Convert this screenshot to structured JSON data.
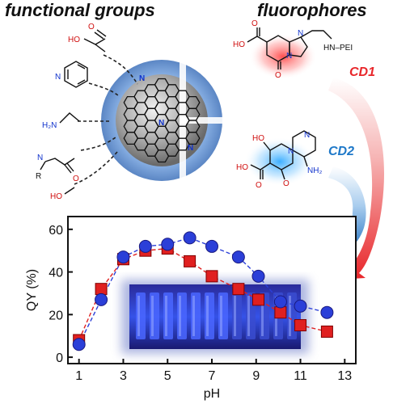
{
  "headings": {
    "functional_groups": "functional groups",
    "fluorophores": "fluorophores"
  },
  "labels": {
    "cd1": "CD1",
    "cd2": "CD2",
    "cd1_color": "#e8262a",
    "cd2_color": "#1e78c8"
  },
  "functional_group_labels": {
    "carboxyl_ho": "HO",
    "carboxyl_o": "O",
    "pyridine_n": "N",
    "amine": "H₂N",
    "amide_n": "N",
    "amide_r": "R",
    "amide_o": "O",
    "hydroxyl": "HO"
  },
  "fluorophore1_labels": {
    "o_top": "O",
    "ho": "HO",
    "n_ring": "N",
    "n_fused": "N",
    "o_bottom": "O",
    "hn_pei": "HN–PEI"
  },
  "fluorophore2_labels": {
    "oh": "HO",
    "n_ring": "N",
    "n_pyridine": "N",
    "nh2": "NH₂",
    "o_ring": "O",
    "o_acid": "O",
    "ho_acid": "HO"
  },
  "core_labels": {
    "n1": "N",
    "n2": "N",
    "n3": "N"
  },
  "chart_data": {
    "type": "scatter",
    "xlabel": "pH",
    "ylabel": "QY (%)",
    "xlim": [
      0.5,
      13.5
    ],
    "ylim": [
      -3,
      66
    ],
    "xticks": [
      1,
      3,
      5,
      7,
      9,
      11,
      13
    ],
    "yticks": [
      0,
      20,
      40,
      60
    ],
    "grid": false,
    "series": [
      {
        "marker": "circle",
        "color": "#2b3fd8",
        "line": "#2b3fd8",
        "x": [
          1,
          2,
          3,
          4,
          5,
          6,
          7,
          8.2,
          9.1,
          10.1,
          11,
          12.2
        ],
        "y": [
          6,
          27,
          47,
          52,
          53,
          56,
          52,
          47,
          38,
          26,
          24,
          21
        ]
      },
      {
        "marker": "square",
        "color": "#e02020",
        "line": "#e02020",
        "x": [
          1,
          2,
          3,
          4,
          5,
          6,
          7,
          8.2,
          9.1,
          10.1,
          11,
          12.2
        ],
        "y": [
          8,
          32,
          46,
          50,
          51,
          45,
          38,
          32,
          27,
          21,
          15,
          12
        ]
      }
    ],
    "inset": "photo of vials glowing blue under UV"
  }
}
